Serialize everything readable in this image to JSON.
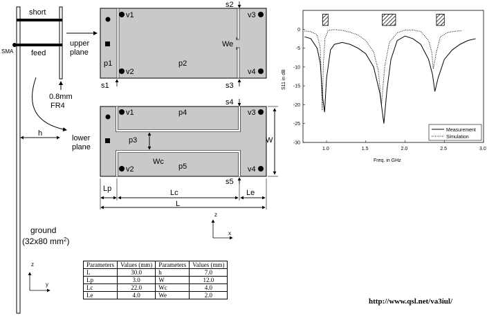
{
  "antenna": {
    "short_label": "short",
    "feed_label": "feed",
    "sma_label": "SMA",
    "substrate_label_1": "0.8mm",
    "substrate_label_2": "FR4",
    "h_label": "h",
    "ground_label_1": "ground",
    "ground_label_2": "(32x80 mm",
    "ground_label_sup": "2",
    "ground_label_3": ")",
    "axis_z": "z",
    "axis_y": "y"
  },
  "upper_plane": {
    "label_1": "upper",
    "label_2": "plane",
    "v1": "v1",
    "v2": "v2",
    "v3": "v3",
    "v4": "v4",
    "p1": "p1",
    "p2": "p2",
    "s1": "s1",
    "s2": "s2",
    "s3": "s3",
    "we": "We"
  },
  "lower_plane": {
    "label_1": "lower",
    "label_2": "plane",
    "v1": "v1",
    "v2": "v2",
    "v3": "v3",
    "v4": "v4",
    "p3": "p3",
    "p4": "p4",
    "p5": "p5",
    "s4": "s4",
    "s5": "s5",
    "wc": "Wc",
    "w": "W",
    "lp": "Lp",
    "lc": "Lc",
    "le": "Le",
    "l": "L",
    "axis_z": "z",
    "axis_x": "x"
  },
  "chart_data": {
    "type": "line",
    "title": "",
    "xlabel": "Freq. in GHz",
    "ylabel": "S11 in dB",
    "xlim": [
      0.7,
      3.0
    ],
    "ylim": [
      -30,
      5
    ],
    "xticks": [
      "1.0",
      "1.5",
      "2.0",
      "2.5",
      "3.0"
    ],
    "yticks": [
      "0",
      "-5",
      "-10",
      "-15",
      "-20",
      "-25",
      "-30"
    ],
    "legend_position": "bottom-right",
    "series": [
      {
        "name": "Measurement",
        "style": "solid",
        "x": [
          0.72,
          0.8,
          0.88,
          0.92,
          0.95,
          0.975,
          1.0,
          1.05,
          1.1,
          1.2,
          1.3,
          1.4,
          1.5,
          1.6,
          1.68,
          1.73,
          1.77,
          1.82,
          1.9,
          2.0,
          2.1,
          2.2,
          2.3,
          2.35,
          2.38,
          2.42,
          2.5,
          2.6,
          2.7,
          2.8,
          2.9
        ],
        "y": [
          -2.0,
          -2.5,
          -5.0,
          -9.0,
          -18.0,
          -22.0,
          -13.0,
          -5.5,
          -4.0,
          -3.5,
          -4.0,
          -5.0,
          -6.5,
          -10.0,
          -17.0,
          -25.0,
          -16.0,
          -8.0,
          -3.0,
          -1.8,
          -2.5,
          -4.0,
          -8.0,
          -12.0,
          -16.5,
          -13.0,
          -8.0,
          -5.5,
          -4.0,
          -3.0,
          -2.5
        ]
      },
      {
        "name": "Simulation",
        "style": "dotted",
        "x": [
          0.72,
          0.8,
          0.88,
          0.92,
          0.945,
          0.96,
          0.98,
          1.02,
          1.1,
          1.2,
          1.3,
          1.4,
          1.5,
          1.6,
          1.66,
          1.7,
          1.74,
          1.8,
          1.9,
          2.0,
          2.1,
          2.2,
          2.3,
          2.34,
          2.36,
          2.4,
          2.45,
          2.55,
          2.65,
          2.72
        ],
        "y": [
          -0.5,
          -0.6,
          -1.5,
          -5.0,
          -21.5,
          -9.0,
          -2.5,
          -0.3,
          -0.1,
          -0.3,
          -0.8,
          -1.5,
          -3.0,
          -6.0,
          -11.0,
          -20.0,
          -10.0,
          -3.5,
          -1.0,
          -0.2,
          -0.2,
          -0.6,
          -3.0,
          -6.0,
          -10.5,
          -6.0,
          -2.0,
          -0.8,
          -0.5,
          -0.4
        ]
      }
    ],
    "bands": [
      [
        0.95,
        1.02
      ],
      [
        1.71,
        1.88
      ],
      [
        2.4,
        2.5
      ]
    ]
  },
  "params_table": {
    "headers": [
      "Parameters",
      "Values (mm)",
      "Parameters",
      "Values (mm)"
    ],
    "rows": [
      [
        "L",
        "30.0",
        "h",
        "7.0"
      ],
      [
        "Lp",
        "3.0",
        "W",
        "12.0"
      ],
      [
        "Lc",
        "22.0",
        "Wc",
        "4.0"
      ],
      [
        "Le",
        "4.0",
        "We",
        "2.0"
      ]
    ]
  },
  "url": "http://www.qsl.net/va3iul/"
}
